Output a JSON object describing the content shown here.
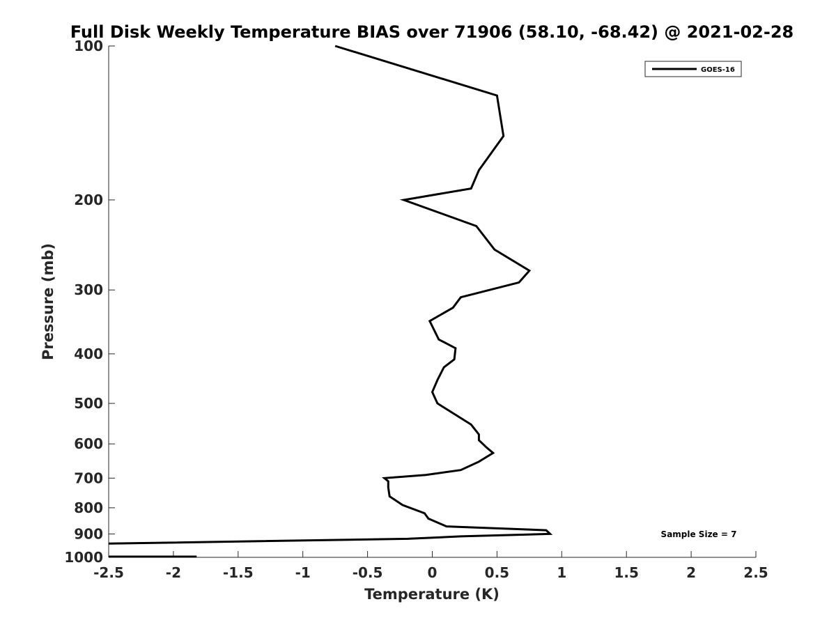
{
  "chart_data": {
    "type": "line",
    "title": "Full Disk Weekly Temperature BIAS over 71906 (58.10, -68.42) @ 2021-02-28",
    "xlabel": "Temperature (K)",
    "ylabel": "Pressure (mb)",
    "xlim": [
      -2.5,
      2.5
    ],
    "ylim": [
      100,
      1000
    ],
    "y_scale": "log",
    "y_reversed": true,
    "grid": false,
    "legend_position": "top-right",
    "x_ticks": [
      -2.5,
      -2,
      -1.5,
      -1,
      -0.5,
      0,
      0.5,
      1,
      1.5,
      2,
      2.5
    ],
    "x_tick_labels": [
      "-2.5",
      "-2",
      "-1.5",
      "-1",
      "-0.5",
      "0",
      "0.5",
      "1",
      "1.5",
      "2",
      "2.5"
    ],
    "y_ticks": [
      100,
      200,
      300,
      400,
      500,
      600,
      700,
      800,
      900,
      1000
    ],
    "y_tick_labels": [
      "100",
      "200",
      "300",
      "400",
      "500",
      "600",
      "700",
      "800",
      "900",
      "1000"
    ],
    "series": [
      {
        "name": "GOES-16",
        "color": "#000000",
        "points": [
          [
            -0.75,
            100
          ],
          [
            0.5,
            125
          ],
          [
            0.55,
            150
          ],
          [
            0.36,
            175
          ],
          [
            0.3,
            190
          ],
          [
            -0.22,
            200
          ],
          [
            0.34,
            225
          ],
          [
            0.48,
            250
          ],
          [
            0.75,
            275
          ],
          [
            0.67,
            290
          ],
          [
            0.22,
            310
          ],
          [
            0.16,
            325
          ],
          [
            -0.02,
            345
          ],
          [
            0.05,
            375
          ],
          [
            0.18,
            390
          ],
          [
            0.17,
            410
          ],
          [
            0.09,
            425
          ],
          [
            0.04,
            450
          ],
          [
            0.0,
            475
          ],
          [
            0.04,
            500
          ],
          [
            0.3,
            550
          ],
          [
            0.36,
            575
          ],
          [
            0.36,
            590
          ],
          [
            0.42,
            610
          ],
          [
            0.47,
            625
          ],
          [
            0.36,
            650
          ],
          [
            0.22,
            675
          ],
          [
            -0.05,
            690
          ],
          [
            -0.37,
            700
          ],
          [
            -0.34,
            710
          ],
          [
            -0.34,
            730
          ],
          [
            -0.33,
            760
          ],
          [
            -0.23,
            790
          ],
          [
            -0.06,
            820
          ],
          [
            -0.03,
            840
          ],
          [
            0.11,
            870
          ],
          [
            0.88,
            885
          ],
          [
            0.91,
            900
          ],
          [
            0.22,
            910
          ],
          [
            -0.19,
            920
          ],
          [
            -2.5,
            940
          ]
        ],
        "segment_2": [
          [
            -2.5,
            1000
          ],
          [
            -1.82,
            1000
          ]
        ]
      }
    ],
    "annotations": [
      "Sample Size = 7"
    ]
  }
}
